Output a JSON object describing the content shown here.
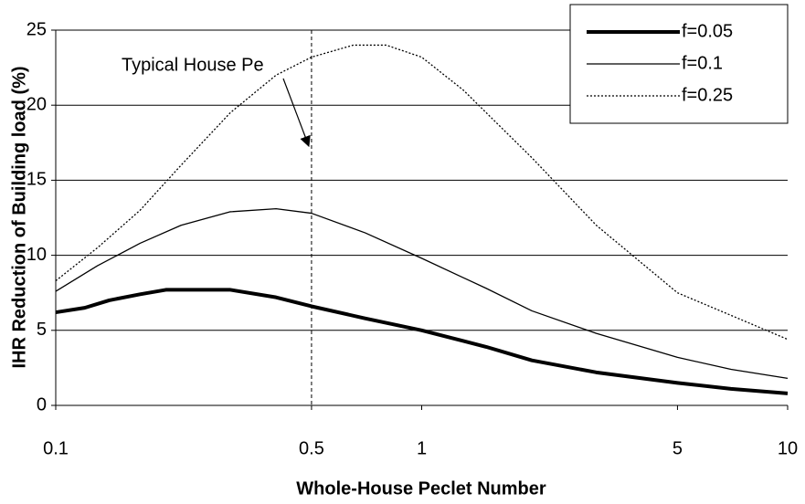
{
  "chart_data": {
    "type": "line",
    "xlabel": "Whole-House Peclet Number",
    "ylabel": "IHR Reduction of Building load (%)",
    "xscale": "log",
    "xlim": [
      0.1,
      10
    ],
    "xticks": [
      0.1,
      0.5,
      1,
      5,
      10
    ],
    "ylim": [
      0,
      25
    ],
    "yticks": [
      0,
      5,
      10,
      15,
      20,
      25
    ],
    "grid": true,
    "legend": "upper right",
    "annotation": {
      "text": "Typical House Pe",
      "x": 0.5
    },
    "series": [
      {
        "name": "f=0.05",
        "color": "#000000",
        "width": 4,
        "style": "solid",
        "x": [
          0.1,
          0.12,
          0.14,
          0.17,
          0.2,
          0.3,
          0.4,
          0.5,
          0.7,
          1,
          1.5,
          2,
          3,
          5,
          7,
          10
        ],
        "values": [
          6.2,
          6.5,
          7,
          7.4,
          7.7,
          7.7,
          7.2,
          6.6,
          5.8,
          5,
          3.9,
          3,
          2.2,
          1.5,
          1.1,
          0.8
        ]
      },
      {
        "name": "f=0.1",
        "color": "#000000",
        "width": 1.3,
        "style": "solid",
        "x": [
          0.1,
          0.13,
          0.17,
          0.22,
          0.3,
          0.4,
          0.5,
          0.7,
          1,
          1.5,
          2,
          3,
          5,
          7,
          10
        ],
        "values": [
          7.6,
          9.3,
          10.8,
          12,
          12.9,
          13.1,
          12.8,
          11.5,
          9.8,
          7.8,
          6.3,
          4.8,
          3.2,
          2.4,
          1.8
        ]
      },
      {
        "name": "f=0.25",
        "color": "#000000",
        "width": 1.3,
        "style": "dotted",
        "x": [
          0.1,
          0.13,
          0.17,
          0.22,
          0.3,
          0.4,
          0.5,
          0.65,
          0.8,
          1,
          1.3,
          2,
          3,
          5,
          7,
          10
        ],
        "values": [
          8.3,
          10.5,
          13,
          16,
          19.5,
          22,
          23.2,
          24,
          24,
          23.2,
          21,
          16.5,
          12,
          7.5,
          6,
          4.4
        ]
      }
    ]
  }
}
